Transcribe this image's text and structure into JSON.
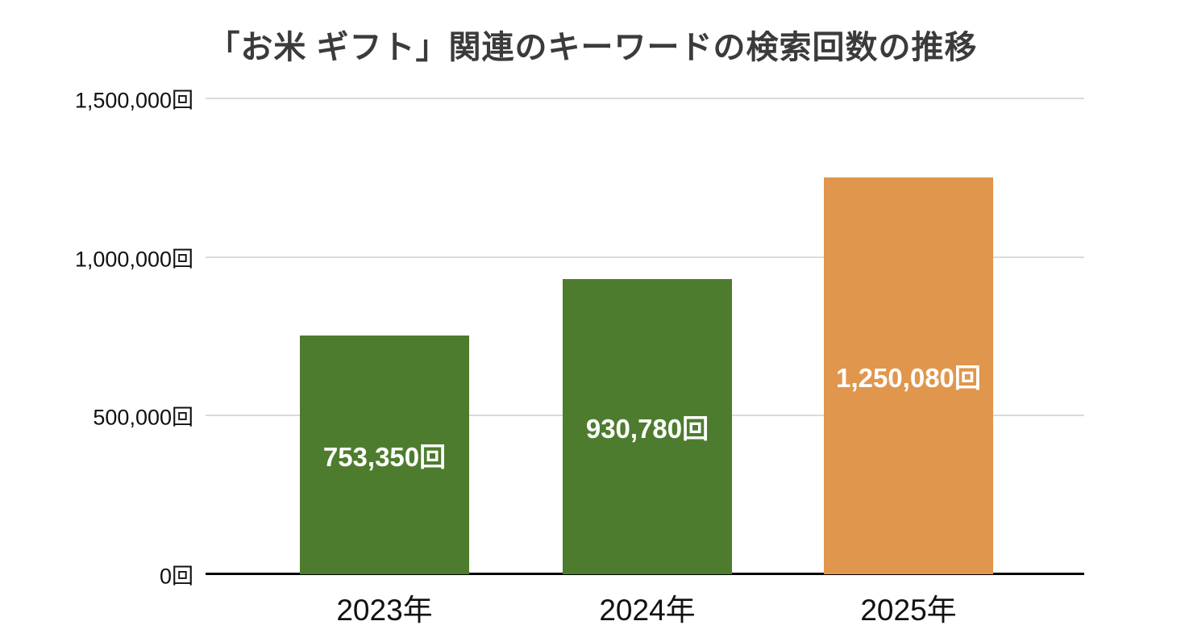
{
  "chart_data": {
    "type": "bar",
    "title": "「お米 ギフト」関連のキーワードの検索回数の推移",
    "categories": [
      "2023年",
      "2024年",
      "2025年"
    ],
    "values": [
      753350,
      930780,
      1250080
    ],
    "value_labels": [
      "753,350回",
      "930,780回",
      "1,250,080回"
    ],
    "bar_colors": [
      "#4d7c2e",
      "#4d7c2e",
      "#e0964c"
    ],
    "xlabel": "",
    "ylabel": "",
    "ylim": [
      0,
      1500000
    ],
    "y_ticks": [
      {
        "value": 0,
        "label": "0回"
      },
      {
        "value": 500000,
        "label": "500,000回"
      },
      {
        "value": 1000000,
        "label": "1,000,000回"
      },
      {
        "value": 1500000,
        "label": "1,500,000回"
      }
    ],
    "grid": true,
    "legend": "none",
    "background_color": "#ffffff",
    "grid_color": "#dadada",
    "axis_color": "#000000",
    "label_text_color": "#ffffff",
    "title_color": "#3b3b3b"
  }
}
